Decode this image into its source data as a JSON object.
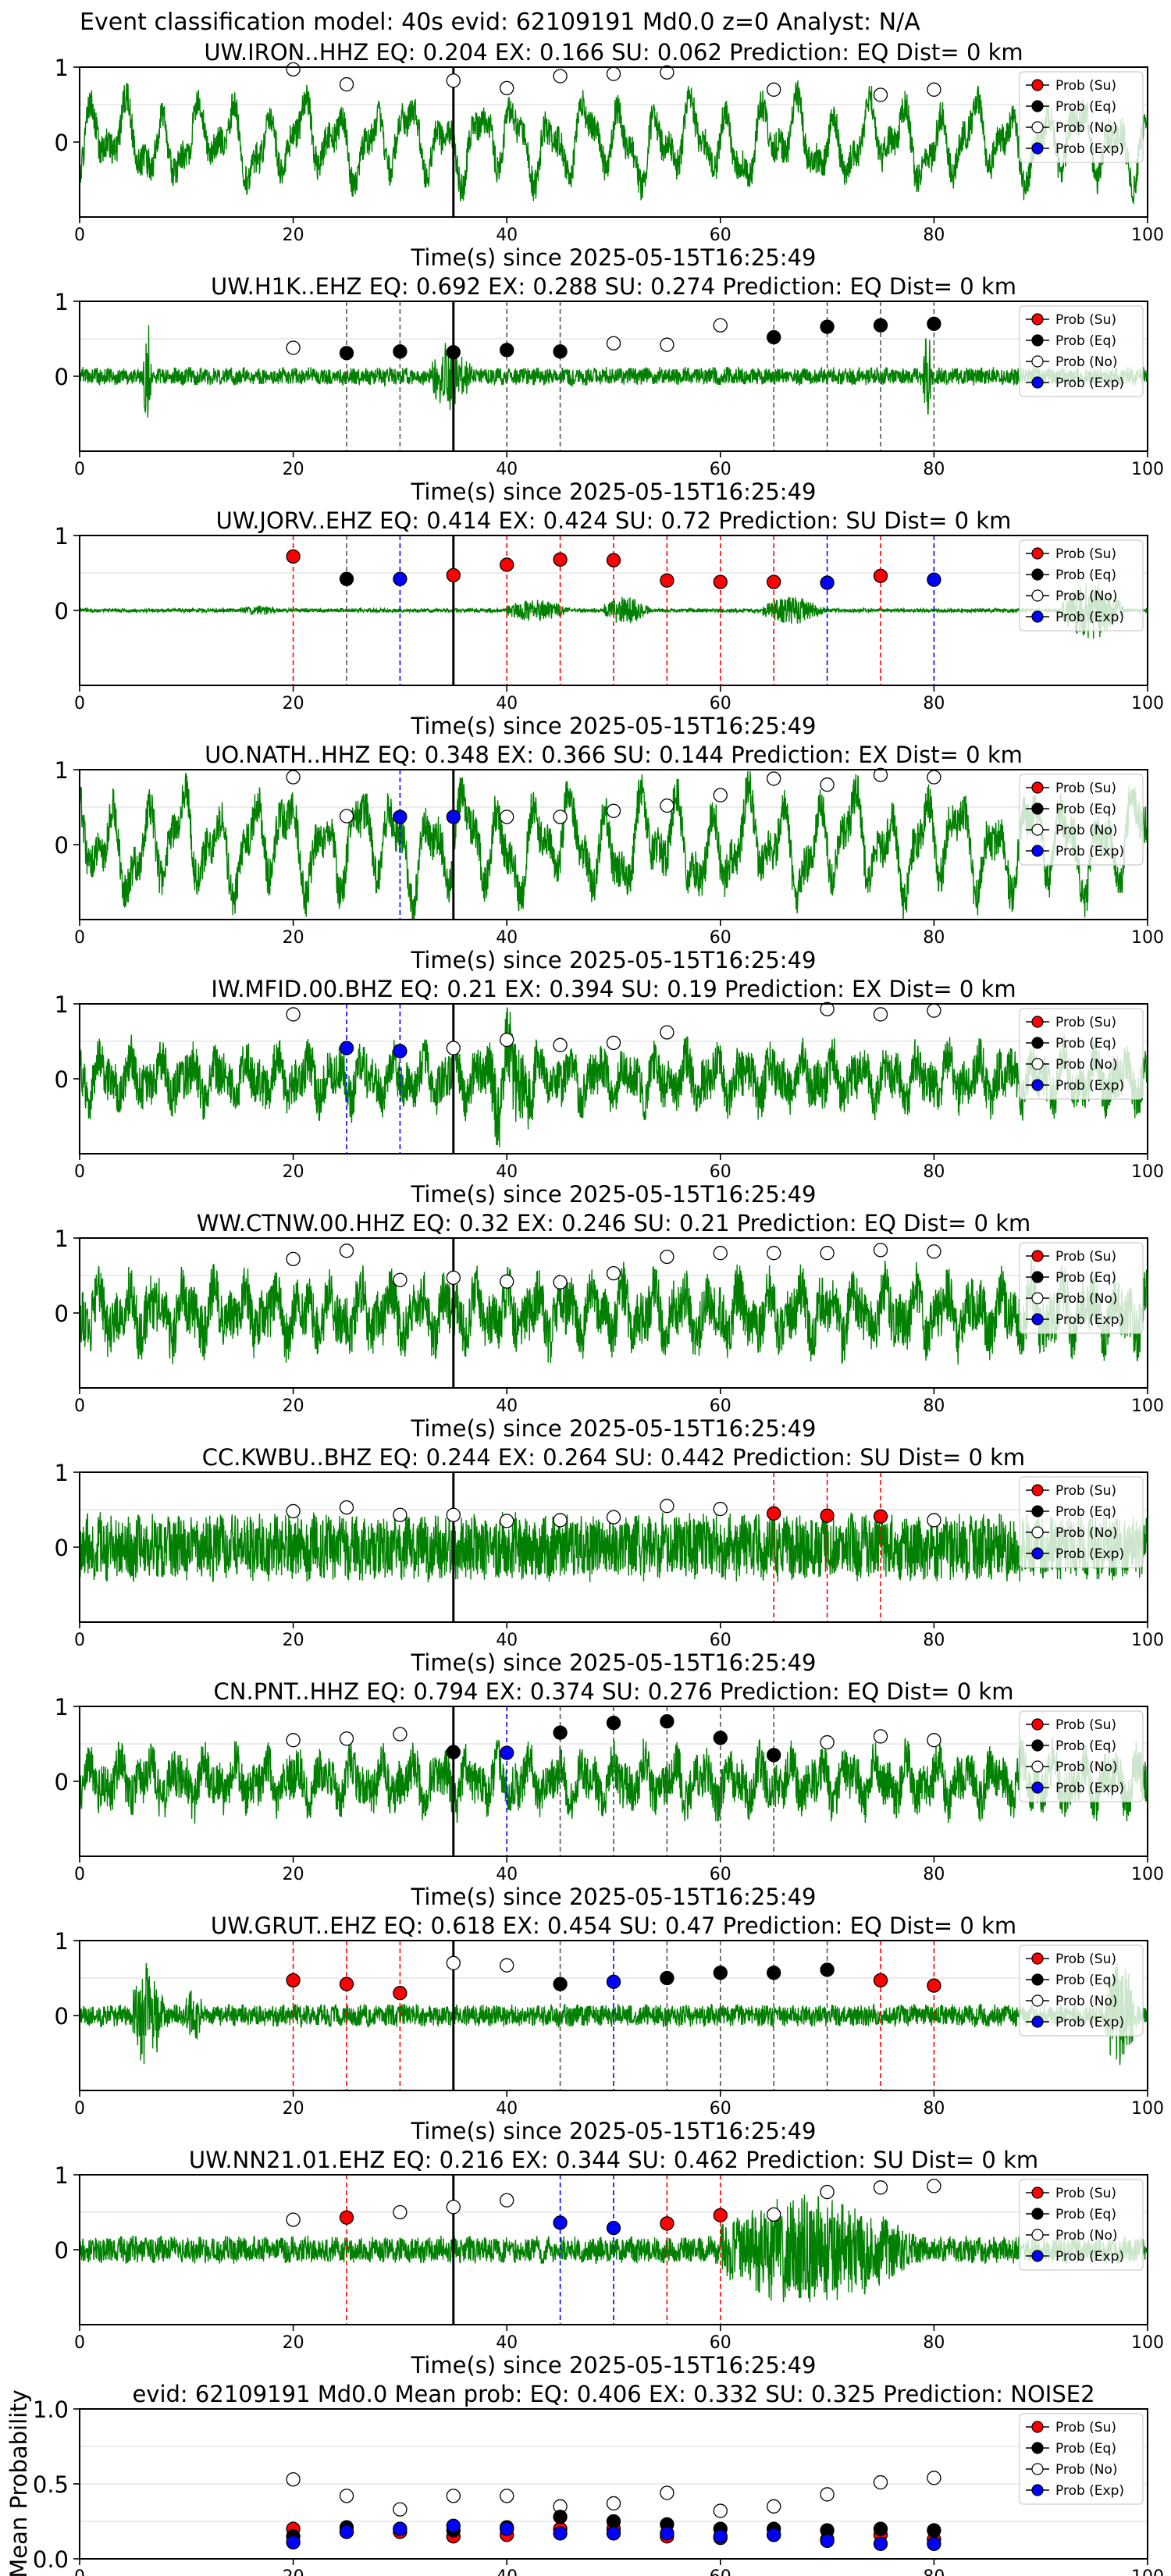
{
  "suptitle": "Event classification model: 40s evid: 62109191 Md0.0 z=0 Analyst: N/A",
  "colors": {
    "waveform": "#008000",
    "su": "#ff0000",
    "eq": "#000000",
    "no": "#ffffff",
    "exp": "#0000ff",
    "origin_line": "#000000"
  },
  "legend": {
    "placement": "top-right",
    "entries": [
      {
        "key": "su",
        "label": "Prob (Su)"
      },
      {
        "key": "eq",
        "label": "Prob (Eq)"
      },
      {
        "key": "no",
        "label": "Prob (No)"
      },
      {
        "key": "exp",
        "label": "Prob (Exp)"
      }
    ]
  },
  "chart_data": [
    {
      "type": "line",
      "title": "UW.IRON..HHZ   EQ: 0.204  EX: 0.166  SU: 0.062   Prediction: EQ    Dist= 0 km",
      "xlabel": "Time(s) since 2025-05-15T16:25:49",
      "xlim": [
        0,
        100
      ],
      "ylim": [
        -1,
        1
      ],
      "xticks": [
        "0",
        "20",
        "40",
        "60",
        "80",
        "100"
      ],
      "yticks": [
        "0",
        "1"
      ],
      "origin_time": 35,
      "waveform": {
        "style": "lowfreq",
        "amp": 0.6,
        "seed": 1,
        "burst": [],
        "taper_end": 0
      },
      "prob_no": [
        [
          20,
          0.97
        ],
        [
          25,
          0.77
        ],
        [
          35,
          0.82
        ],
        [
          40,
          0.72
        ],
        [
          45,
          0.88
        ],
        [
          50,
          0.91
        ],
        [
          55,
          0.93
        ],
        [
          65,
          0.7
        ],
        [
          75,
          0.63
        ],
        [
          80,
          0.7
        ]
      ],
      "prob_su": [],
      "prob_eq": [],
      "prob_exp": [],
      "vlines_su": [],
      "vlines_eq": [],
      "vlines_exp": []
    },
    {
      "type": "line",
      "title": "UW.H1K..EHZ   EQ: 0.692  EX: 0.288  SU: 0.274   Prediction: EQ    Dist= 0 km",
      "xlabel": "Time(s) since 2025-05-15T16:25:49",
      "xlim": [
        0,
        100
      ],
      "ylim": [
        -1,
        1
      ],
      "xticks": [
        "0",
        "20",
        "40",
        "60",
        "80",
        "100"
      ],
      "yticks": [
        "0",
        "1"
      ],
      "origin_time": 35,
      "waveform": {
        "style": "noise",
        "amp": 0.12,
        "seed": 2,
        "burst": [
          [
            6,
            7,
            0.7
          ],
          [
            33,
            38,
            0.35
          ],
          [
            79,
            80,
            0.7
          ]
        ],
        "taper_end": 0
      },
      "prob_no": [
        [
          20,
          0.38
        ],
        [
          50,
          0.44
        ],
        [
          55,
          0.42
        ],
        [
          60,
          0.68
        ]
      ],
      "prob_su": [],
      "prob_eq": [
        [
          25,
          0.31
        ],
        [
          30,
          0.33
        ],
        [
          35,
          0.32
        ],
        [
          40,
          0.35
        ],
        [
          45,
          0.33
        ],
        [
          65,
          0.52
        ],
        [
          70,
          0.66
        ],
        [
          75,
          0.68
        ],
        [
          80,
          0.7
        ]
      ],
      "prob_exp": [],
      "vlines_su": [],
      "vlines_eq": [
        25,
        30,
        40,
        45,
        65,
        70,
        75,
        80
      ],
      "vlines_exp": []
    },
    {
      "type": "line",
      "title": "UW.JORV..EHZ   EQ: 0.414  EX: 0.424  SU: 0.72   Prediction: SU    Dist= 0 km",
      "xlabel": "Time(s) since 2025-05-15T16:25:49",
      "xlim": [
        0,
        100
      ],
      "ylim": [
        -1,
        1
      ],
      "xticks": [
        "0",
        "20",
        "40",
        "60",
        "80",
        "100"
      ],
      "yticks": [
        "0",
        "1"
      ],
      "origin_time": 35,
      "waveform": {
        "style": "quiet",
        "amp": 0.03,
        "seed": 3,
        "burst": [
          [
            15,
            20,
            0.05
          ],
          [
            40,
            48,
            0.15
          ],
          [
            49,
            55,
            0.2
          ],
          [
            64,
            72,
            0.2
          ],
          [
            92,
            100,
            0.45
          ]
        ],
        "taper_end": 0
      },
      "prob_no": [],
      "prob_su": [
        [
          20,
          0.72
        ],
        [
          35,
          0.47
        ],
        [
          40,
          0.61
        ],
        [
          45,
          0.68
        ],
        [
          50,
          0.67
        ],
        [
          55,
          0.4
        ],
        [
          60,
          0.38
        ],
        [
          65,
          0.38
        ],
        [
          75,
          0.46
        ]
      ],
      "prob_eq": [
        [
          25,
          0.42
        ]
      ],
      "prob_exp": [
        [
          30,
          0.42
        ],
        [
          70,
          0.37
        ],
        [
          80,
          0.41
        ]
      ],
      "vlines_su": [
        20,
        40,
        45,
        50,
        55,
        60,
        65,
        75
      ],
      "vlines_eq": [
        25
      ],
      "vlines_exp": [
        30,
        70,
        80
      ]
    },
    {
      "type": "line",
      "title": "UO.NATH..HHZ   EQ: 0.348  EX: 0.366  SU: 0.144   Prediction: EX    Dist= 0 km",
      "xlabel": "Time(s) since 2025-05-15T16:25:49",
      "xlim": [
        0,
        100
      ],
      "ylim": [
        -1,
        1
      ],
      "xticks": [
        "0",
        "20",
        "40",
        "60",
        "80",
        "100"
      ],
      "yticks": [
        "0",
        "1"
      ],
      "origin_time": 35,
      "waveform": {
        "style": "lowfreq",
        "amp": 0.75,
        "seed": 4,
        "burst": [],
        "taper_end": 0
      },
      "prob_no": [
        [
          20,
          0.9
        ],
        [
          25,
          0.38
        ],
        [
          40,
          0.37
        ],
        [
          45,
          0.37
        ],
        [
          50,
          0.45
        ],
        [
          55,
          0.52
        ],
        [
          60,
          0.66
        ],
        [
          65,
          0.88
        ],
        [
          70,
          0.8
        ],
        [
          75,
          0.93
        ],
        [
          80,
          0.9
        ]
      ],
      "prob_su": [],
      "prob_eq": [],
      "prob_exp": [
        [
          30,
          0.37
        ],
        [
          35,
          0.37
        ]
      ],
      "vlines_su": [],
      "vlines_eq": [],
      "vlines_exp": [
        30
      ]
    },
    {
      "type": "line",
      "title": "IW.MFID.00.BHZ   EQ: 0.21  EX: 0.394  SU: 0.19   Prediction: EX    Dist= 0 km",
      "xlabel": "Time(s) since 2025-05-15T16:25:49",
      "xlim": [
        0,
        100
      ],
      "ylim": [
        -1,
        1
      ],
      "xticks": [
        "0",
        "20",
        "40",
        "60",
        "80",
        "100"
      ],
      "yticks": [
        "0",
        "1"
      ],
      "origin_time": 35,
      "waveform": {
        "style": "mixed",
        "amp": 0.5,
        "seed": 5,
        "burst": [
          [
            38,
            45,
            0.4
          ]
        ],
        "taper_end": 0
      },
      "prob_no": [
        [
          20,
          0.86
        ],
        [
          35,
          0.41
        ],
        [
          40,
          0.52
        ],
        [
          45,
          0.45
        ],
        [
          50,
          0.48
        ],
        [
          55,
          0.62
        ],
        [
          70,
          0.93
        ],
        [
          75,
          0.86
        ],
        [
          80,
          0.91
        ]
      ],
      "prob_su": [],
      "prob_eq": [],
      "prob_exp": [
        [
          25,
          0.41
        ],
        [
          30,
          0.37
        ]
      ],
      "vlines_su": [],
      "vlines_eq": [],
      "vlines_exp": [
        25,
        30
      ]
    },
    {
      "type": "line",
      "title": "WW.CTNW.00.HHZ   EQ: 0.32  EX: 0.246  SU: 0.21   Prediction: EQ    Dist= 0 km",
      "xlabel": "Time(s) since 2025-05-15T16:25:49",
      "xlim": [
        0,
        100
      ],
      "ylim": [
        -1,
        1
      ],
      "xticks": [
        "0",
        "20",
        "40",
        "60",
        "80",
        "100"
      ],
      "yticks": [
        "0",
        "1"
      ],
      "origin_time": 35,
      "waveform": {
        "style": "mixed",
        "amp": 0.6,
        "seed": 6,
        "burst": [],
        "taper_end": 0
      },
      "prob_no": [
        [
          20,
          0.72
        ],
        [
          25,
          0.83
        ],
        [
          30,
          0.44
        ],
        [
          35,
          0.47
        ],
        [
          40,
          0.42
        ],
        [
          45,
          0.41
        ],
        [
          50,
          0.53
        ],
        [
          55,
          0.75
        ],
        [
          60,
          0.8
        ],
        [
          65,
          0.8
        ],
        [
          70,
          0.8
        ],
        [
          75,
          0.84
        ],
        [
          80,
          0.82
        ]
      ],
      "prob_su": [],
      "prob_eq": [],
      "prob_exp": [],
      "vlines_su": [],
      "vlines_eq": [],
      "vlines_exp": []
    },
    {
      "type": "line",
      "title": "CC.KWBU..BHZ   EQ: 0.244  EX: 0.264  SU: 0.442   Prediction: SU    Dist= 0 km",
      "xlabel": "Time(s) since 2025-05-15T16:25:49",
      "xlim": [
        0,
        100
      ],
      "ylim": [
        -1,
        1
      ],
      "xticks": [
        "0",
        "20",
        "40",
        "60",
        "80",
        "100"
      ],
      "yticks": [
        "0",
        "1"
      ],
      "origin_time": 35,
      "waveform": {
        "style": "noise",
        "amp": 0.45,
        "seed": 7,
        "burst": [],
        "taper_end": 0
      },
      "prob_no": [
        [
          20,
          0.48
        ],
        [
          25,
          0.53
        ],
        [
          30,
          0.43
        ],
        [
          35,
          0.43
        ],
        [
          40,
          0.35
        ],
        [
          45,
          0.36
        ],
        [
          50,
          0.4
        ],
        [
          55,
          0.55
        ],
        [
          60,
          0.51
        ],
        [
          80,
          0.36
        ]
      ],
      "prob_su": [
        [
          65,
          0.45
        ],
        [
          70,
          0.42
        ],
        [
          75,
          0.41
        ]
      ],
      "prob_eq": [],
      "prob_exp": [],
      "vlines_su": [
        65,
        70,
        75
      ],
      "vlines_eq": [],
      "vlines_exp": []
    },
    {
      "type": "line",
      "title": "CN.PNT..HHZ   EQ: 0.794  EX: 0.374  SU: 0.276   Prediction: EQ    Dist= 0 km",
      "xlabel": "Time(s) since 2025-05-15T16:25:49",
      "xlim": [
        0,
        100
      ],
      "ylim": [
        -1,
        1
      ],
      "xticks": [
        "0",
        "20",
        "40",
        "60",
        "80",
        "100"
      ],
      "yticks": [
        "0",
        "1"
      ],
      "origin_time": 35,
      "waveform": {
        "style": "mixed",
        "amp": 0.5,
        "seed": 8,
        "burst": [],
        "taper_end": 0
      },
      "prob_no": [
        [
          20,
          0.55
        ],
        [
          25,
          0.57
        ],
        [
          30,
          0.63
        ],
        [
          70,
          0.52
        ],
        [
          75,
          0.6
        ],
        [
          80,
          0.55
        ]
      ],
      "prob_su": [],
      "prob_eq": [
        [
          35,
          0.39
        ],
        [
          45,
          0.65
        ],
        [
          50,
          0.78
        ],
        [
          55,
          0.8
        ],
        [
          60,
          0.58
        ],
        [
          65,
          0.35
        ]
      ],
      "prob_exp": [
        [
          40,
          0.38
        ]
      ],
      "vlines_su": [],
      "vlines_eq": [
        45,
        50,
        55,
        60,
        65
      ],
      "vlines_exp": [
        40
      ]
    },
    {
      "type": "line",
      "title": "UW.GRUT..EHZ   EQ: 0.618  EX: 0.454  SU: 0.47   Prediction: EQ    Dist= 0 km",
      "xlabel": "Time(s) since 2025-05-15T16:25:49",
      "xlim": [
        0,
        100
      ],
      "ylim": [
        -1,
        1
      ],
      "xticks": [
        "0",
        "20",
        "40",
        "60",
        "80",
        "100"
      ],
      "yticks": [
        "0",
        "1"
      ],
      "origin_time": 35,
      "waveform": {
        "style": "noise",
        "amp": 0.15,
        "seed": 9,
        "burst": [
          [
            5,
            9,
            0.6
          ],
          [
            10,
            12,
            0.3
          ],
          [
            96,
            100,
            0.6
          ]
        ],
        "taper_end": 0
      },
      "prob_no": [
        [
          35,
          0.7
        ],
        [
          40,
          0.67
        ]
      ],
      "prob_su": [
        [
          20,
          0.47
        ],
        [
          25,
          0.42
        ],
        [
          30,
          0.3
        ],
        [
          75,
          0.47
        ],
        [
          80,
          0.4
        ]
      ],
      "prob_eq": [
        [
          45,
          0.42
        ],
        [
          55,
          0.5
        ],
        [
          60,
          0.57
        ],
        [
          65,
          0.57
        ],
        [
          70,
          0.61
        ]
      ],
      "prob_exp": [
        [
          50,
          0.45
        ]
      ],
      "vlines_su": [
        20,
        25,
        30,
        75,
        80
      ],
      "vlines_eq": [
        45,
        55,
        60,
        65,
        70
      ],
      "vlines_exp": [
        50
      ]
    },
    {
      "type": "line",
      "title": "UW.NN21.01.EHZ   EQ: 0.216  EX: 0.344  SU: 0.462   Prediction: SU    Dist= 0 km",
      "xlabel": "Time(s) since 2025-05-15T16:25:49",
      "xlim": [
        0,
        100
      ],
      "ylim": [
        -1,
        1
      ],
      "xticks": [
        "0",
        "20",
        "40",
        "60",
        "80",
        "100"
      ],
      "yticks": [
        "0",
        "1"
      ],
      "origin_time": 35,
      "waveform": {
        "style": "noise",
        "amp": 0.18,
        "seed": 10,
        "burst": [
          [
            60,
            85,
            0.55
          ]
        ],
        "taper_end": 0
      },
      "prob_no": [
        [
          20,
          0.4
        ],
        [
          30,
          0.5
        ],
        [
          35,
          0.57
        ],
        [
          40,
          0.66
        ],
        [
          65,
          0.47
        ],
        [
          70,
          0.77
        ],
        [
          75,
          0.83
        ],
        [
          80,
          0.85
        ]
      ],
      "prob_su": [
        [
          25,
          0.43
        ],
        [
          55,
          0.35
        ],
        [
          60,
          0.46
        ]
      ],
      "prob_eq": [],
      "prob_exp": [
        [
          45,
          0.36
        ],
        [
          50,
          0.29
        ]
      ],
      "vlines_su": [
        25,
        55,
        60
      ],
      "vlines_eq": [],
      "vlines_exp": [
        45,
        50
      ]
    },
    {
      "type": "scatter",
      "title": "evid: 62109191  Md0.0   Mean prob:   EQ: 0.406  EX: 0.332  SU: 0.325   Prediction: NOISE2",
      "xlabel": "",
      "ylabel": "Mean Probability",
      "xlim": [
        0,
        100
      ],
      "ylim": [
        0,
        1
      ],
      "xticks": [
        "0",
        "20",
        "40",
        "60",
        "80",
        "100"
      ],
      "yticks": [
        "0.0",
        "0.5",
        "1.0"
      ],
      "prob_no": [
        [
          20,
          0.53
        ],
        [
          25,
          0.42
        ],
        [
          30,
          0.33
        ],
        [
          35,
          0.42
        ],
        [
          40,
          0.42
        ],
        [
          45,
          0.35
        ],
        [
          50,
          0.37
        ],
        [
          55,
          0.44
        ],
        [
          60,
          0.32
        ],
        [
          65,
          0.35
        ],
        [
          70,
          0.43
        ],
        [
          75,
          0.51
        ],
        [
          80,
          0.54
        ]
      ],
      "prob_su": [
        [
          20,
          0.2
        ],
        [
          25,
          0.18
        ],
        [
          30,
          0.18
        ],
        [
          35,
          0.15
        ],
        [
          40,
          0.16
        ],
        [
          45,
          0.2
        ],
        [
          50,
          0.2
        ],
        [
          55,
          0.15
        ],
        [
          60,
          0.14
        ],
        [
          65,
          0.16
        ],
        [
          70,
          0.13
        ],
        [
          75,
          0.16
        ],
        [
          80,
          0.13
        ]
      ],
      "prob_eq": [
        [
          20,
          0.15
        ],
        [
          25,
          0.21
        ],
        [
          30,
          0.2
        ],
        [
          35,
          0.19
        ],
        [
          40,
          0.21
        ],
        [
          45,
          0.28
        ],
        [
          50,
          0.25
        ],
        [
          55,
          0.23
        ],
        [
          60,
          0.2
        ],
        [
          65,
          0.2
        ],
        [
          70,
          0.19
        ],
        [
          75,
          0.2
        ],
        [
          80,
          0.19
        ]
      ],
      "prob_exp": [
        [
          20,
          0.11
        ],
        [
          25,
          0.18
        ],
        [
          30,
          0.2
        ],
        [
          35,
          0.22
        ],
        [
          40,
          0.2
        ],
        [
          45,
          0.17
        ],
        [
          50,
          0.17
        ],
        [
          55,
          0.17
        ],
        [
          60,
          0.15
        ],
        [
          65,
          0.16
        ],
        [
          70,
          0.12
        ],
        [
          75,
          0.1
        ],
        [
          80,
          0.1
        ]
      ]
    }
  ]
}
